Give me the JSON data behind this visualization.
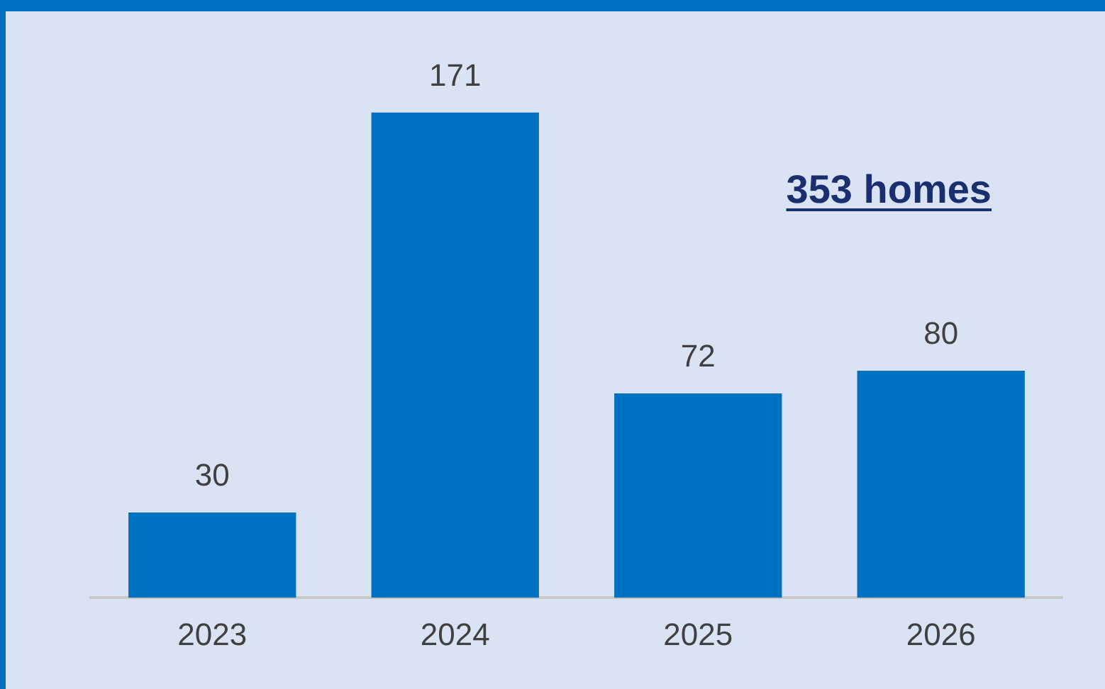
{
  "chart_data": {
    "type": "bar",
    "categories": [
      "2023",
      "2024",
      "2025",
      "2026"
    ],
    "values": [
      30,
      171,
      72,
      80
    ],
    "color": "#0070c0",
    "data_labels": true,
    "grid": false,
    "legend": false,
    "annotations": [
      "353 homes"
    ]
  }
}
